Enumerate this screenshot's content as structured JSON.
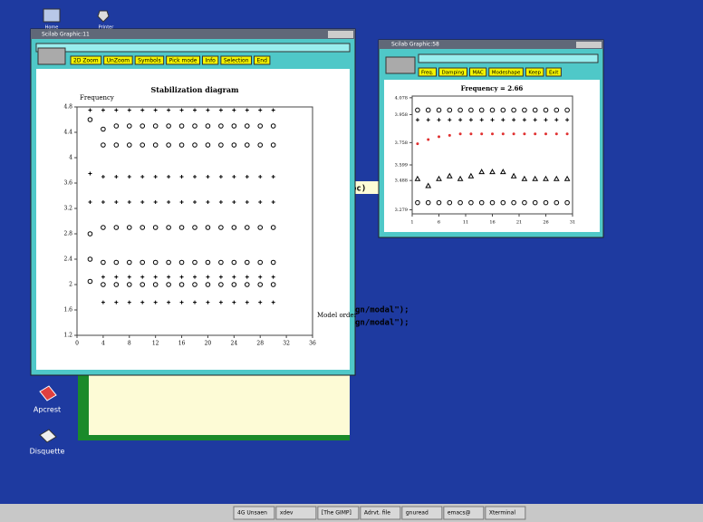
{
  "desktop": {
    "icons": [
      "Home",
      "Printer",
      "Apcrest",
      "Disquette"
    ]
  },
  "terminal": {
    "lines": [
      "pc)",
      "gn/modal\");",
      "gn/modal\");"
    ]
  },
  "windows": [
    {
      "title": "Scilab Graphic:11",
      "buttons": [
        "2D Zoom",
        "UnZoom",
        "Symbols",
        "Pick mode",
        "Info",
        "Selection",
        "End"
      ],
      "chart_data": {
        "type": "scatter",
        "title": "Stabilization diagram",
        "ylabel": "Frequency",
        "xlabel": "Model order",
        "xlim": [
          0,
          36
        ],
        "ylim": [
          1.2,
          4.8
        ],
        "xticks": [
          0,
          4,
          8,
          12,
          16,
          20,
          24,
          28,
          32,
          36
        ],
        "yticks": [
          1.2,
          1.6,
          2.0,
          2.4,
          2.8,
          3.2,
          3.6,
          4.0,
          4.4,
          4.8
        ],
        "x": [
          2,
          4,
          6,
          8,
          10,
          12,
          14,
          16,
          18,
          20,
          22,
          24,
          26,
          28,
          30
        ],
        "series": [
          {
            "color": "#000000",
            "marker": "+",
            "values": [
              null,
              1.72,
              1.72,
              1.72,
              1.72,
              1.72,
              1.72,
              1.72,
              1.72,
              1.72,
              1.72,
              1.72,
              1.72,
              1.72,
              1.72
            ]
          },
          {
            "color": "#000000",
            "marker": "o",
            "values": [
              2.05,
              2.0,
              2.0,
              2.0,
              2.0,
              2.0,
              2.0,
              2.0,
              2.0,
              2.0,
              2.0,
              2.0,
              2.0,
              2.0,
              2.0
            ]
          },
          {
            "color": "#000000",
            "marker": "+",
            "values": [
              null,
              2.12,
              2.12,
              2.12,
              2.12,
              2.12,
              2.12,
              2.12,
              2.12,
              2.12,
              2.12,
              2.12,
              2.12,
              2.12,
              2.12
            ]
          },
          {
            "color": "#000000",
            "marker": "o",
            "values": [
              2.4,
              2.35,
              2.35,
              2.35,
              2.35,
              2.35,
              2.35,
              2.35,
              2.35,
              2.35,
              2.35,
              2.35,
              2.35,
              2.35,
              2.35
            ]
          },
          {
            "color": "#000000",
            "marker": "o",
            "values": [
              2.8,
              2.9,
              2.9,
              2.9,
              2.9,
              2.9,
              2.9,
              2.9,
              2.9,
              2.9,
              2.9,
              2.9,
              2.9,
              2.9,
              2.9
            ]
          },
          {
            "color": "#000000",
            "marker": "+",
            "values": [
              3.3,
              3.3,
              3.3,
              3.3,
              3.3,
              3.3,
              3.3,
              3.3,
              3.3,
              3.3,
              3.3,
              3.3,
              3.3,
              3.3,
              3.3
            ]
          },
          {
            "color": "#000000",
            "marker": "+",
            "values": [
              3.75,
              3.7,
              3.7,
              3.7,
              3.7,
              3.7,
              3.7,
              3.7,
              3.7,
              3.7,
              3.7,
              3.7,
              3.7,
              3.7,
              3.7
            ]
          },
          {
            "color": "#000000",
            "marker": "o",
            "values": [
              null,
              4.2,
              4.2,
              4.2,
              4.2,
              4.2,
              4.2,
              4.2,
              4.2,
              4.2,
              4.2,
              4.2,
              4.2,
              4.2,
              4.2
            ]
          },
          {
            "color": "#000000",
            "marker": "o",
            "values": [
              4.6,
              4.45,
              4.5,
              4.5,
              4.5,
              4.5,
              4.5,
              4.5,
              4.5,
              4.5,
              4.5,
              4.5,
              4.5,
              4.5,
              4.5
            ]
          },
          {
            "color": "#000000",
            "marker": "+",
            "values": [
              4.75,
              4.75,
              4.75,
              4.75,
              4.75,
              4.75,
              4.75,
              4.75,
              4.75,
              4.75,
              4.75,
              4.75,
              4.75,
              4.75,
              4.75
            ]
          }
        ]
      }
    },
    {
      "title": "Scilab Graphic:58",
      "buttons": [
        "Freq.",
        "Damping",
        "MAC",
        "Modeshape",
        "Keep",
        "Exit"
      ],
      "chart_data": {
        "type": "scatter",
        "title": "Frequency = 2.66",
        "xlim": [
          1,
          31
        ],
        "ylim": [
          3.25,
          4.09
        ],
        "xticks": [
          1,
          6,
          11,
          16,
          21,
          26,
          31
        ],
        "yticks": [
          3.279,
          3.488,
          3.599,
          3.758,
          3.958,
          4.078
        ],
        "x": [
          2,
          4,
          6,
          8,
          10,
          12,
          14,
          16,
          18,
          20,
          22,
          24,
          26,
          28,
          30
        ],
        "series": [
          {
            "color": "#000000",
            "marker": "o",
            "values": [
              3.99,
              3.99,
              3.99,
              3.99,
              3.99,
              3.99,
              3.99,
              3.99,
              3.99,
              3.99,
              3.99,
              3.99,
              3.99,
              3.99,
              3.99
            ]
          },
          {
            "color": "#000000",
            "marker": "+",
            "values": [
              3.92,
              3.92,
              3.92,
              3.92,
              3.92,
              3.92,
              3.92,
              3.92,
              3.92,
              3.92,
              3.92,
              3.92,
              3.92,
              3.92,
              3.92
            ]
          },
          {
            "color": "#e03030",
            "marker": "*",
            "values": [
              3.75,
              3.78,
              3.8,
              3.81,
              3.82,
              3.82,
              3.82,
              3.82,
              3.82,
              3.82,
              3.82,
              3.82,
              3.82,
              3.82,
              3.82
            ]
          },
          {
            "color": "#000000",
            "marker": "^",
            "values": [
              3.5,
              3.45,
              3.5,
              3.52,
              3.5,
              3.52,
              3.55,
              3.55,
              3.55,
              3.52,
              3.5,
              3.5,
              3.5,
              3.5,
              3.5
            ]
          },
          {
            "color": "#000000",
            "marker": "o",
            "values": [
              3.33,
              3.33,
              3.33,
              3.33,
              3.33,
              3.33,
              3.33,
              3.33,
              3.33,
              3.33,
              3.33,
              3.33,
              3.33,
              3.33,
              3.33
            ]
          }
        ]
      }
    }
  ],
  "taskbar": {
    "items": [
      "4G Unsaen",
      "xdev",
      "[The GIMP]",
      "Adrvt. file",
      "gnuread",
      "emacs@",
      "Xterminal"
    ]
  }
}
